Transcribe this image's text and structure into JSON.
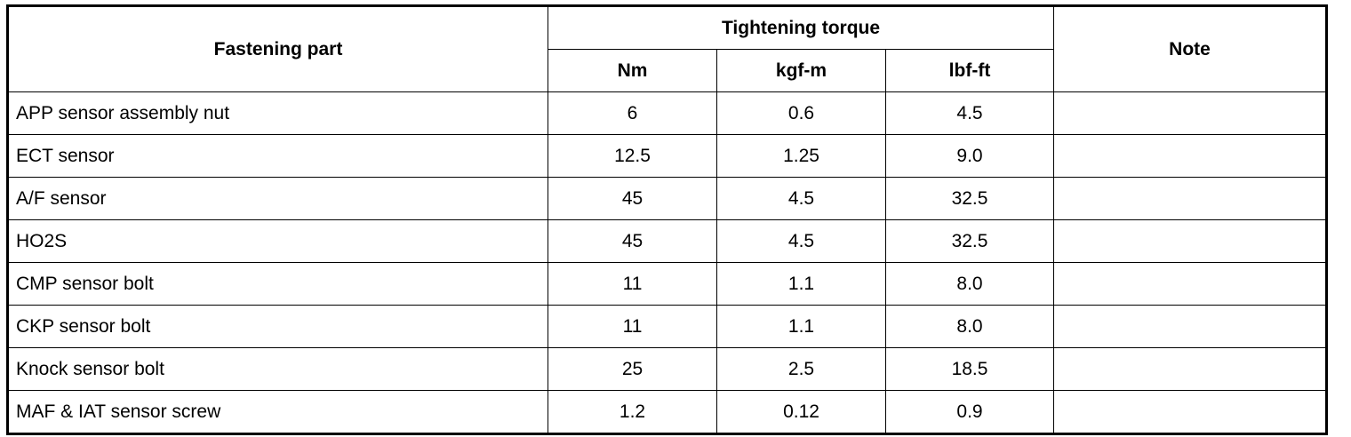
{
  "table": {
    "headers": {
      "part": "Fastening part",
      "torque": "Tightening torque",
      "units": [
        "Nm",
        "kgf-m",
        "lbf-ft"
      ],
      "note": "Note"
    },
    "rows": [
      [
        "APP sensor assembly nut",
        "6",
        "0.6",
        "4.5"
      ],
      [
        "ECT sensor",
        "12.5",
        "1.25",
        "9.0"
      ],
      [
        "A/F sensor",
        "45",
        "4.5",
        "32.5"
      ],
      [
        "HO2S",
        "45",
        "4.5",
        "32.5"
      ],
      [
        "CMP sensor bolt",
        "11",
        "1.1",
        "8.0"
      ],
      [
        "CKP sensor bolt",
        "11",
        "1.1",
        "8.0"
      ],
      [
        "Knock sensor bolt",
        "25",
        "2.5",
        "18.5"
      ],
      [
        "MAF & IAT sensor screw",
        "1.2",
        "0.12",
        "0.9"
      ]
    ]
  }
}
